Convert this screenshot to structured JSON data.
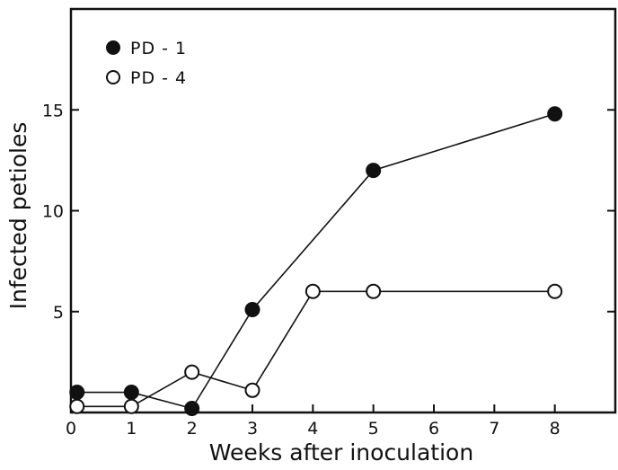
{
  "chart_data": {
    "type": "line",
    "xlabel": "Weeks after inoculation",
    "ylabel": "Infected petioles",
    "x_tick_labels": [
      "0",
      "1",
      "2",
      "3",
      "4",
      "5",
      "6",
      "7",
      "8"
    ],
    "y_tick_labels": [
      "5",
      "10",
      "15"
    ],
    "xlim": [
      0,
      9
    ],
    "ylim": [
      0,
      20
    ],
    "grid": false,
    "legend_position": "top-left",
    "series": [
      {
        "name": "PD - 1",
        "marker": "filled-circle",
        "points": [
          {
            "week_position": 0.1,
            "value": 1.0
          },
          {
            "week_position": 1.0,
            "value": 1.0
          },
          {
            "week_position": 2.0,
            "value": 0.2
          },
          {
            "week_position": 3.0,
            "value": 5.1
          },
          {
            "week_position": 5.0,
            "value": 12.0
          },
          {
            "week_position": 8.0,
            "value": 14.8
          }
        ]
      },
      {
        "name": "PD - 4",
        "marker": "open-circle",
        "points": [
          {
            "week_position": 0.1,
            "value": 0.3
          },
          {
            "week_position": 1.0,
            "value": 0.3
          },
          {
            "week_position": 2.0,
            "value": 2.0
          },
          {
            "week_position": 3.0,
            "value": 1.1
          },
          {
            "week_position": 4.0,
            "value": 6.0
          },
          {
            "week_position": 5.0,
            "value": 6.0
          },
          {
            "week_position": 8.0,
            "value": 6.0
          }
        ]
      }
    ]
  }
}
